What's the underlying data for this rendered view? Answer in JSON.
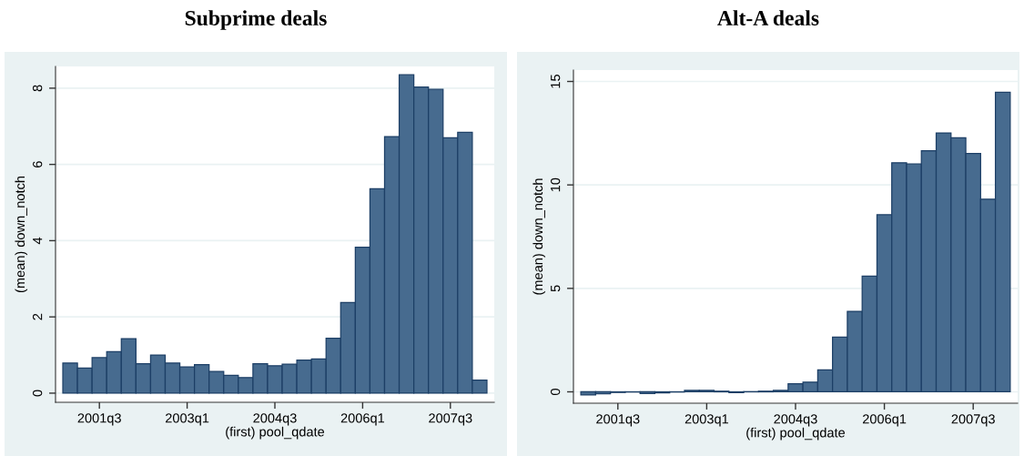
{
  "chart_data": [
    {
      "type": "bar",
      "title": "Subprime deals",
      "xlabel": "(first) pool_qdate",
      "ylabel": "(mean) down_notch",
      "categories": [
        null,
        null,
        "2001q3",
        null,
        null,
        null,
        null,
        null,
        "2003q1",
        null,
        null,
        null,
        null,
        null,
        "2004q3",
        null,
        null,
        null,
        null,
        null,
        "2006q1",
        null,
        null,
        null,
        null,
        null,
        "2007q3",
        null,
        null
      ],
      "values": [
        0.79,
        0.66,
        0.93,
        1.09,
        1.43,
        0.77,
        1.0,
        0.79,
        0.69,
        0.75,
        0.57,
        0.47,
        0.41,
        0.77,
        0.72,
        0.76,
        0.87,
        0.9,
        1.44,
        2.38,
        3.83,
        5.36,
        6.73,
        8.35,
        8.03,
        7.97,
        6.7,
        6.84,
        0.34
      ],
      "color": "#476b8f",
      "ylim": [
        -0.24,
        8.57
      ],
      "yticks": [
        0,
        2,
        4,
        6,
        8
      ],
      "grid": "y"
    },
    {
      "type": "bar",
      "title": "Alt-A deals",
      "xlabel": "(first) pool_qdate",
      "ylabel": "(mean) down_notch",
      "categories": [
        null,
        null,
        "2001q3",
        null,
        null,
        null,
        null,
        null,
        "2003q1",
        null,
        null,
        null,
        null,
        null,
        "2004q3",
        null,
        null,
        null,
        null,
        null,
        "2006q1",
        null,
        null,
        null,
        null,
        null,
        "2007q3",
        null,
        null
      ],
      "values": [
        -0.15,
        -0.09,
        -0.03,
        -0.01,
        -0.08,
        -0.05,
        -0.01,
        0.07,
        0.07,
        0.03,
        -0.04,
        0.01,
        0.03,
        0.07,
        0.39,
        0.47,
        1.06,
        2.65,
        3.89,
        5.59,
        8.56,
        11.07,
        11.01,
        11.65,
        12.51,
        12.28,
        11.52,
        9.31,
        14.48
      ],
      "color": "#476b8f",
      "ylim": [
        -0.55,
        15.55
      ],
      "yticks": [
        0,
        5,
        10,
        15
      ],
      "grid": "y"
    }
  ]
}
